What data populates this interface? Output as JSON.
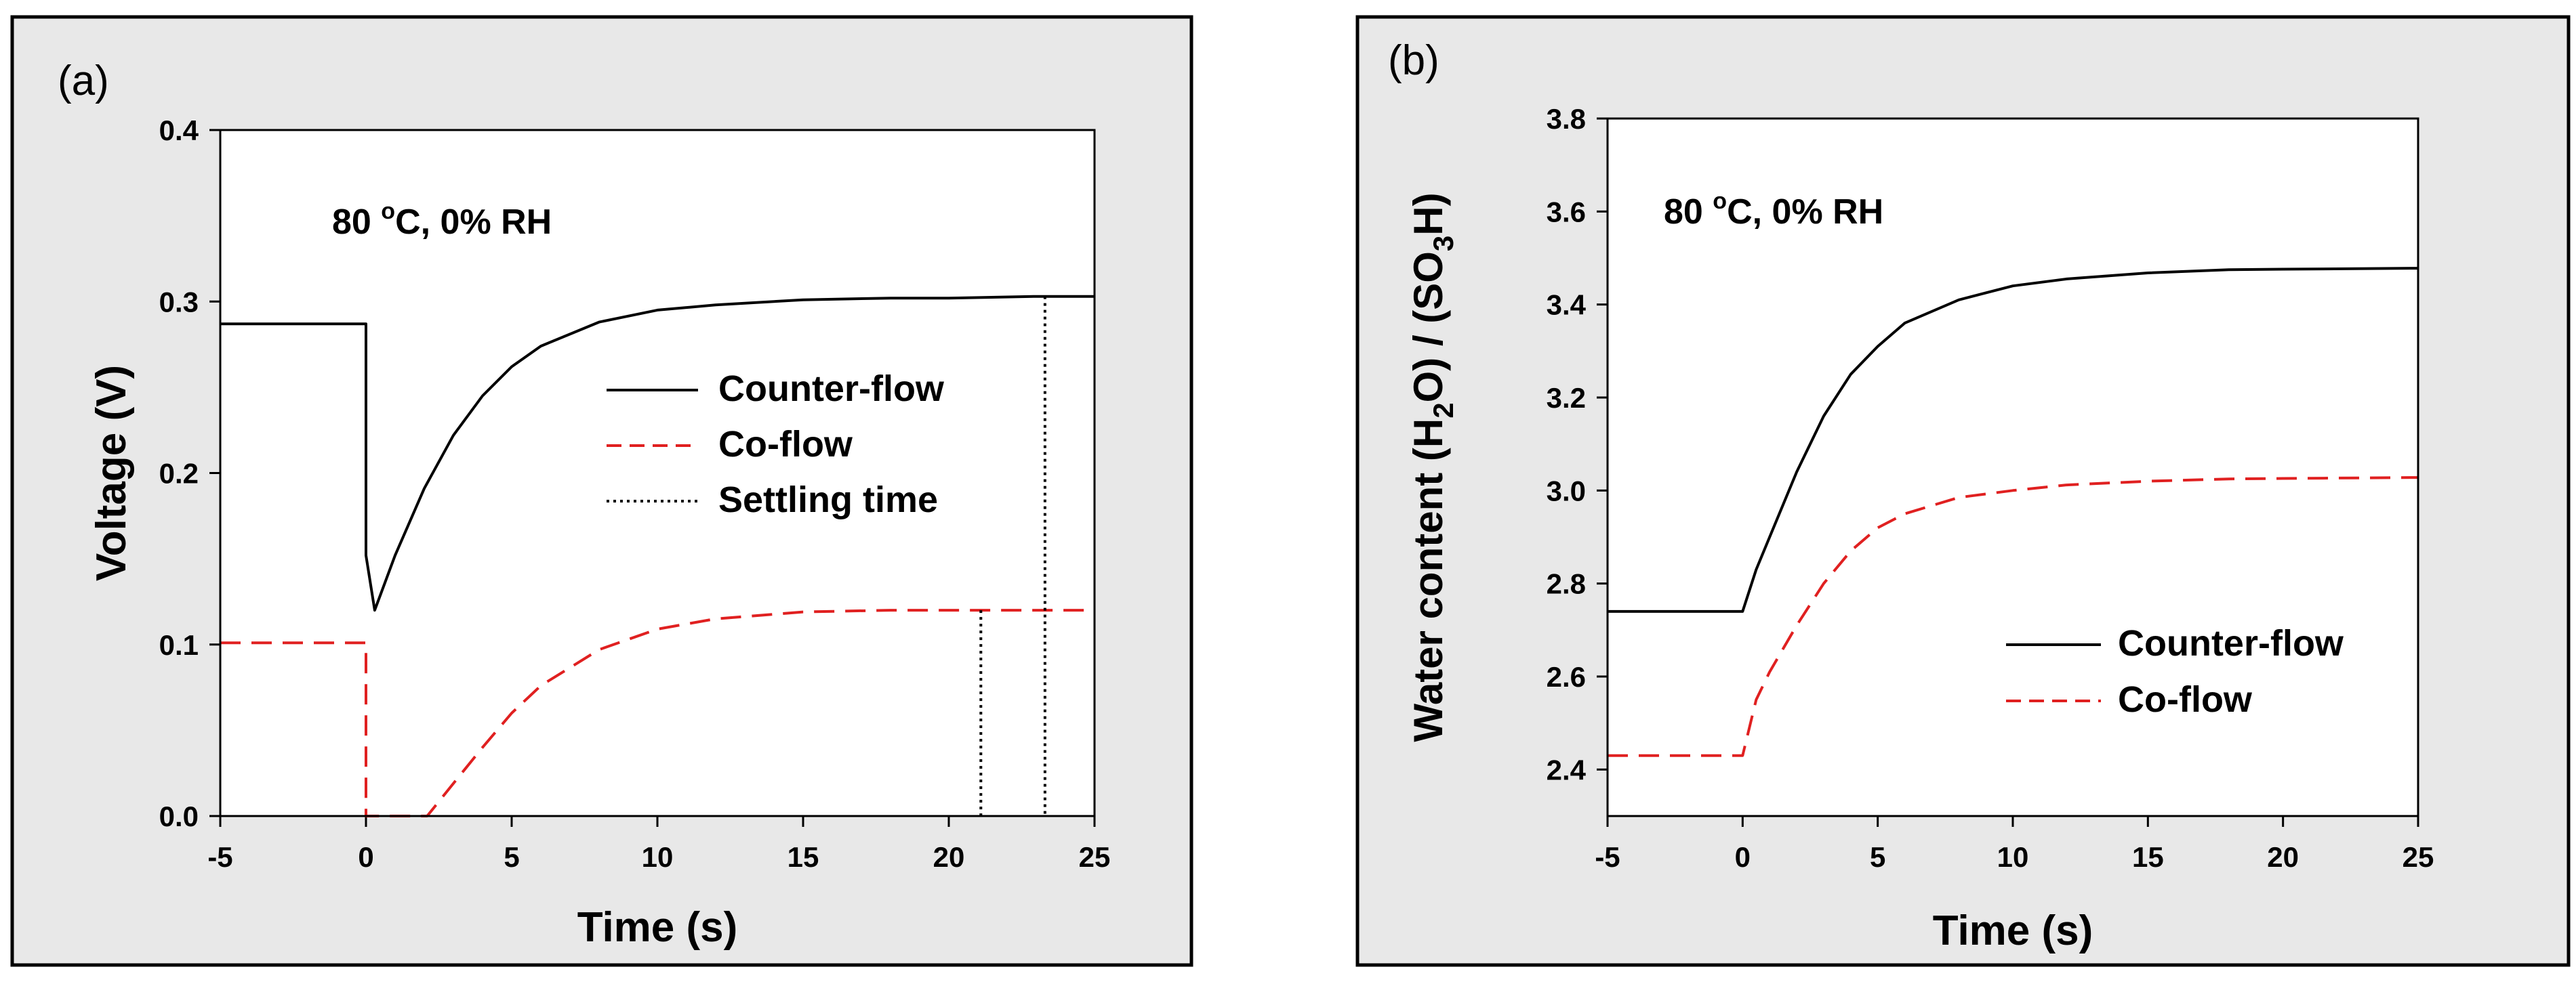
{
  "colors": {
    "panel_bg": "#e8e8e8",
    "plot_bg": "#ffffff",
    "frame": "#000000",
    "counter_flow": "#000000",
    "co_flow": "#e02020",
    "settling": "#000000"
  },
  "chart_data": [
    {
      "type": "line",
      "panel_label": "(a)",
      "annotation": {
        "main": "80 ",
        "sup": "o",
        "rest": "C, 0% RH"
      },
      "xlabel": "Time (s)",
      "ylabel": "Voltage (V)",
      "xlim": [
        -5,
        25
      ],
      "ylim": [
        0.0,
        0.4
      ],
      "xticks": [
        -5,
        0,
        5,
        10,
        15,
        20,
        25
      ],
      "yticks": [
        0.0,
        0.1,
        0.2,
        0.3,
        0.4
      ],
      "ytick_labels": [
        "0.0",
        "0.1",
        "0.2",
        "0.3",
        "0.4"
      ],
      "legend": [
        {
          "label": "Counter-flow",
          "style": "solid",
          "series": "counter_flow"
        },
        {
          "label": "Co-flow",
          "style": "dashed",
          "series": "co_flow"
        },
        {
          "label": "Settling time",
          "style": "dotted",
          "series": "settling"
        }
      ],
      "legend_position": "center-right",
      "series": [
        {
          "name": "Counter-flow",
          "style": "solid",
          "x": [
            -5,
            0,
            0,
            0.3,
            1,
            2,
            3,
            4,
            5,
            6,
            8,
            10,
            12,
            15,
            18,
            20,
            23,
            25
          ],
          "y": [
            0.287,
            0.287,
            0.152,
            0.12,
            0.152,
            0.191,
            0.222,
            0.245,
            0.262,
            0.274,
            0.288,
            0.295,
            0.298,
            0.301,
            0.302,
            0.302,
            0.303,
            0.303
          ]
        },
        {
          "name": "Co-flow",
          "style": "dashed",
          "x": [
            -5,
            0,
            0,
            2.1,
            3,
            4,
            5,
            6,
            8,
            10,
            12,
            15,
            18,
            21,
            25
          ],
          "y": [
            0.101,
            0.101,
            0.0,
            0.0,
            0.019,
            0.04,
            0.06,
            0.076,
            0.097,
            0.109,
            0.115,
            0.119,
            0.12,
            0.12,
            0.12
          ]
        }
      ],
      "settling_times": [
        {
          "series": "Counter-flow",
          "x": 23.3,
          "y": 0.303
        },
        {
          "series": "Co-flow",
          "x": 21.1,
          "y": 0.12
        }
      ]
    },
    {
      "type": "line",
      "panel_label": "(b)",
      "annotation": {
        "main": "80 ",
        "sup": "o",
        "rest": "C, 0% RH"
      },
      "xlabel": "Time (s)",
      "ylabel_parts": [
        {
          "t": "Water content (H"
        },
        {
          "t": "2",
          "sub": true
        },
        {
          "t": "O) / (SO"
        },
        {
          "t": "3",
          "sub": true
        },
        {
          "t": "H)"
        }
      ],
      "xlim": [
        -5,
        25
      ],
      "ylim": [
        2.3,
        3.8
      ],
      "xticks": [
        -5,
        0,
        5,
        10,
        15,
        20,
        25
      ],
      "yticks": [
        2.4,
        2.6,
        2.8,
        3.0,
        3.2,
        3.4,
        3.6,
        3.8
      ],
      "ytick_labels": [
        "2.4",
        "2.6",
        "2.8",
        "3.0",
        "3.2",
        "3.4",
        "3.6",
        "3.8"
      ],
      "legend": [
        {
          "label": "Counter-flow",
          "style": "solid",
          "series": "counter_flow"
        },
        {
          "label": "Co-flow",
          "style": "dashed",
          "series": "co_flow"
        }
      ],
      "legend_position": "lower-right",
      "series": [
        {
          "name": "Counter-flow",
          "style": "solid",
          "x": [
            -5,
            0,
            0.5,
            1,
            2,
            3,
            4,
            5,
            6,
            8,
            10,
            12,
            15,
            18,
            20,
            25
          ],
          "y": [
            2.74,
            2.74,
            2.83,
            2.9,
            3.04,
            3.16,
            3.25,
            3.31,
            3.36,
            3.41,
            3.44,
            3.455,
            3.468,
            3.475,
            3.476,
            3.478
          ]
        },
        {
          "name": "Co-flow",
          "style": "dashed",
          "x": [
            -5,
            0,
            0.5,
            1,
            2,
            3,
            4,
            5,
            6,
            8,
            10,
            12,
            15,
            18,
            20,
            25
          ],
          "y": [
            2.43,
            2.43,
            2.55,
            2.61,
            2.71,
            2.8,
            2.87,
            2.92,
            2.95,
            2.985,
            3.0,
            3.012,
            3.02,
            3.025,
            3.026,
            3.028
          ]
        }
      ]
    }
  ]
}
